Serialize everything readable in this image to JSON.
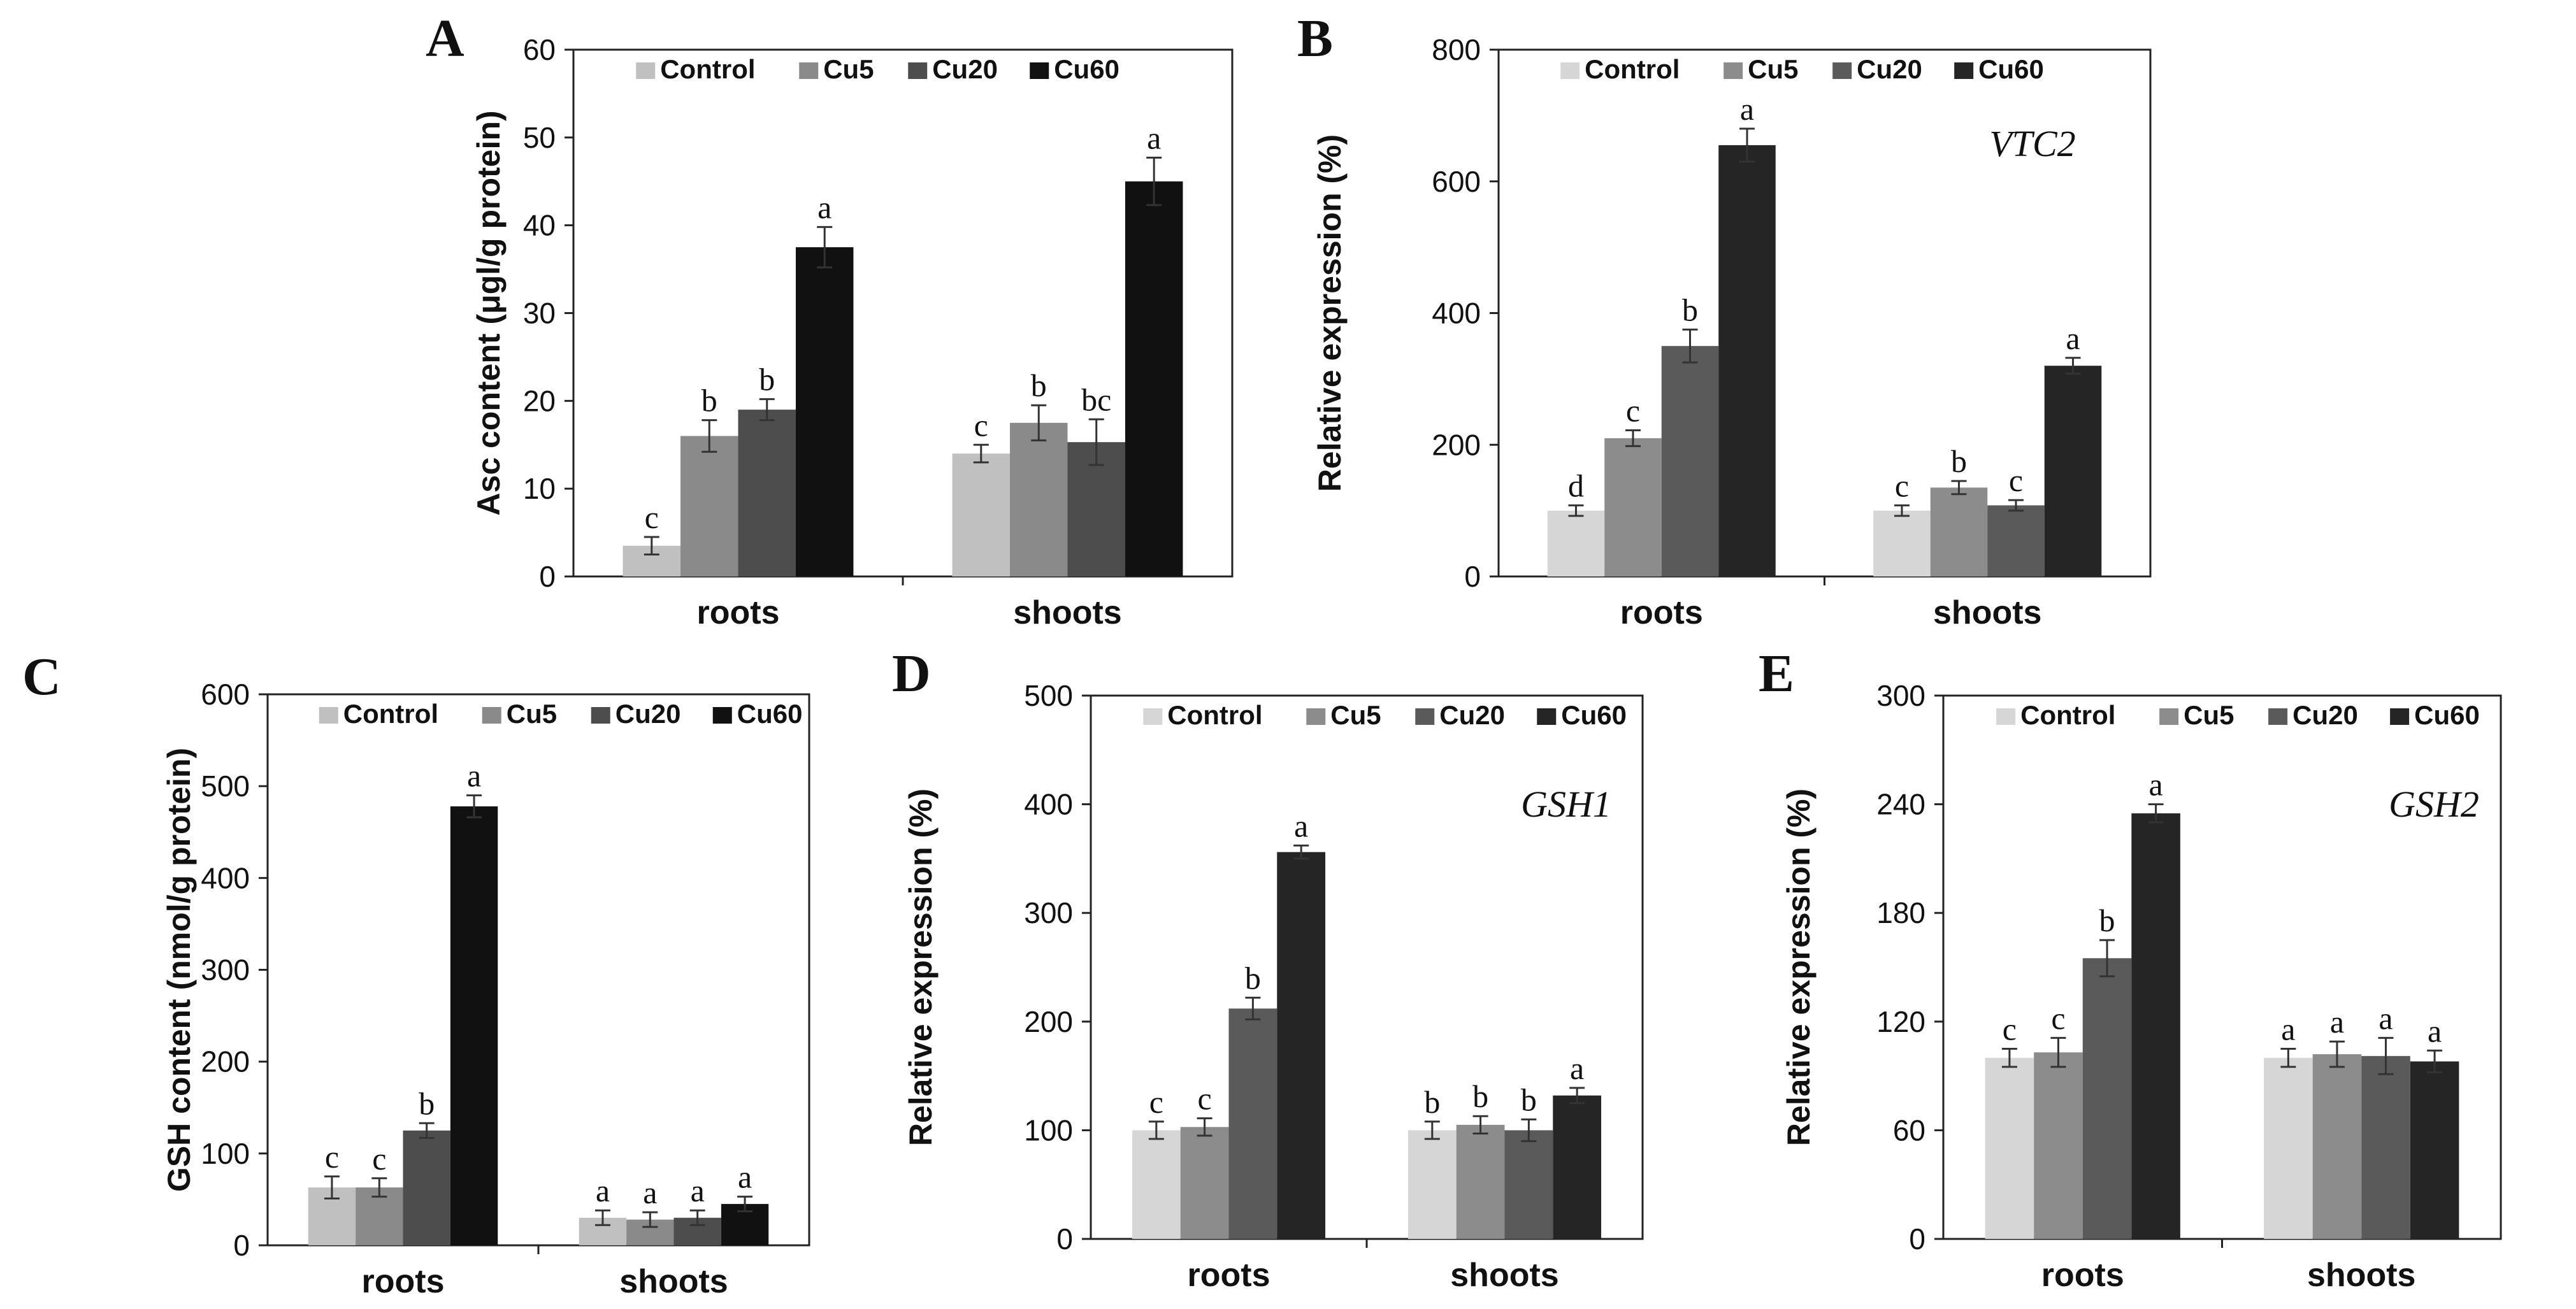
{
  "chart_data": [
    {
      "panel": "A",
      "type": "bar",
      "ylabel": "Asc content (μgl/g protein)",
      "ylim": [
        0,
        60
      ],
      "ytick_step": 10,
      "yticks": [
        "0",
        "10",
        "20",
        "30",
        "40",
        "50",
        "60"
      ],
      "categories": [
        "roots",
        "shoots"
      ],
      "gene": "",
      "legend": [
        "Control",
        "Cu5",
        "Cu20",
        "Cu60"
      ],
      "series": [
        {
          "name": "Control",
          "color": "#c0c0c0",
          "values": [
            3.5,
            14
          ],
          "errors": [
            1,
            1
          ],
          "labels": [
            "c",
            "c"
          ]
        },
        {
          "name": "Cu5",
          "color": "#8a8a8a",
          "values": [
            16,
            17.5
          ],
          "errors": [
            1.8,
            2
          ],
          "labels": [
            "b",
            "b"
          ]
        },
        {
          "name": "Cu20",
          "color": "#4d4d4d",
          "values": [
            19,
            15.3
          ],
          "errors": [
            1.2,
            2.6
          ],
          "labels": [
            "b",
            "bc"
          ]
        },
        {
          "name": "Cu60",
          "color": "#111111",
          "values": [
            37.5,
            45
          ],
          "errors": [
            2.3,
            2.7
          ],
          "labels": [
            "a",
            "a"
          ]
        }
      ]
    },
    {
      "panel": "B",
      "type": "bar",
      "ylabel": "Relative expression (%)",
      "ylim": [
        0,
        800
      ],
      "ytick_step": 200,
      "yticks": [
        "0",
        "200",
        "400",
        "600",
        "800"
      ],
      "categories": [
        "roots",
        "shoots"
      ],
      "gene": "VTC2",
      "legend": [
        "Control",
        "Cu5",
        "Cu20",
        "Cu60"
      ],
      "series": [
        {
          "name": "Control",
          "color": "#d6d6d6",
          "values": [
            100,
            100
          ],
          "errors": [
            8,
            8
          ],
          "labels": [
            "d",
            "c"
          ]
        },
        {
          "name": "Cu5",
          "color": "#8c8c8c",
          "values": [
            210,
            135
          ],
          "errors": [
            12,
            10
          ],
          "labels": [
            "c",
            "b"
          ]
        },
        {
          "name": "Cu20",
          "color": "#5a5a5a",
          "values": [
            350,
            108
          ],
          "errors": [
            25,
            8
          ],
          "labels": [
            "b",
            "c"
          ]
        },
        {
          "name": "Cu60",
          "color": "#252525",
          "values": [
            655,
            320
          ],
          "errors": [
            25,
            12
          ],
          "labels": [
            "a",
            "a"
          ]
        }
      ]
    },
    {
      "panel": "C",
      "type": "bar",
      "ylabel": "GSH content (nmol/g protein)",
      "ylim": [
        0,
        600
      ],
      "ytick_step": 100,
      "yticks": [
        "0",
        "100",
        "200",
        "300",
        "400",
        "500",
        "600"
      ],
      "categories": [
        "roots",
        "shoots"
      ],
      "gene": "",
      "legend": [
        "Control",
        "Cu5",
        "Cu20",
        "Cu60"
      ],
      "series": [
        {
          "name": "Control",
          "color": "#c0c0c0",
          "values": [
            63,
            30
          ],
          "errors": [
            12,
            8
          ],
          "labels": [
            "c",
            "a"
          ]
        },
        {
          "name": "Cu5",
          "color": "#8a8a8a",
          "values": [
            63,
            28
          ],
          "errors": [
            10,
            8
          ],
          "labels": [
            "c",
            "a"
          ]
        },
        {
          "name": "Cu20",
          "color": "#4d4d4d",
          "values": [
            125,
            30
          ],
          "errors": [
            8,
            8
          ],
          "labels": [
            "b",
            "a"
          ]
        },
        {
          "name": "Cu60",
          "color": "#111111",
          "values": [
            478,
            45
          ],
          "errors": [
            12,
            8
          ],
          "labels": [
            "a",
            "a"
          ]
        }
      ]
    },
    {
      "panel": "D",
      "type": "bar",
      "ylabel": "Relative expression (%)",
      "ylim": [
        0,
        500
      ],
      "ytick_step": 100,
      "yticks": [
        "0",
        "100",
        "200",
        "300",
        "400",
        "500"
      ],
      "categories": [
        "roots",
        "shoots"
      ],
      "gene": "GSH1",
      "legend": [
        "Control",
        "Cu5",
        "Cu20",
        "Cu60"
      ],
      "series": [
        {
          "name": "Control",
          "color": "#d6d6d6",
          "values": [
            100,
            100
          ],
          "errors": [
            8,
            8
          ],
          "labels": [
            "c",
            "b"
          ]
        },
        {
          "name": "Cu5",
          "color": "#8c8c8c",
          "values": [
            103,
            105
          ],
          "errors": [
            8,
            8
          ],
          "labels": [
            "c",
            "b"
          ]
        },
        {
          "name": "Cu20",
          "color": "#5a5a5a",
          "values": [
            212,
            100
          ],
          "errors": [
            10,
            10
          ],
          "labels": [
            "b",
            "b"
          ]
        },
        {
          "name": "Cu60",
          "color": "#252525",
          "values": [
            356,
            132
          ],
          "errors": [
            6,
            7
          ],
          "labels": [
            "a",
            "a"
          ]
        }
      ]
    },
    {
      "panel": "E",
      "type": "bar",
      "ylabel": "Relative expression (%)",
      "ylim": [
        0,
        300
      ],
      "ytick_step": 60,
      "yticks": [
        "0",
        "60",
        "120",
        "180",
        "240",
        "300"
      ],
      "categories": [
        "roots",
        "shoots"
      ],
      "gene": "GSH2",
      "legend": [
        "Control",
        "Cu5",
        "Cu20",
        "Cu60"
      ],
      "series": [
        {
          "name": "Control",
          "color": "#d6d6d6",
          "values": [
            100,
            100
          ],
          "errors": [
            5,
            5
          ],
          "labels": [
            "c",
            "a"
          ]
        },
        {
          "name": "Cu5",
          "color": "#8c8c8c",
          "values": [
            103,
            102
          ],
          "errors": [
            8,
            7
          ],
          "labels": [
            "c",
            "a"
          ]
        },
        {
          "name": "Cu20",
          "color": "#5a5a5a",
          "values": [
            155,
            101
          ],
          "errors": [
            10,
            10
          ],
          "labels": [
            "b",
            "a"
          ]
        },
        {
          "name": "Cu60",
          "color": "#252525",
          "values": [
            235,
            98
          ],
          "errors": [
            5,
            6
          ],
          "labels": [
            "a",
            "a"
          ]
        }
      ]
    }
  ]
}
